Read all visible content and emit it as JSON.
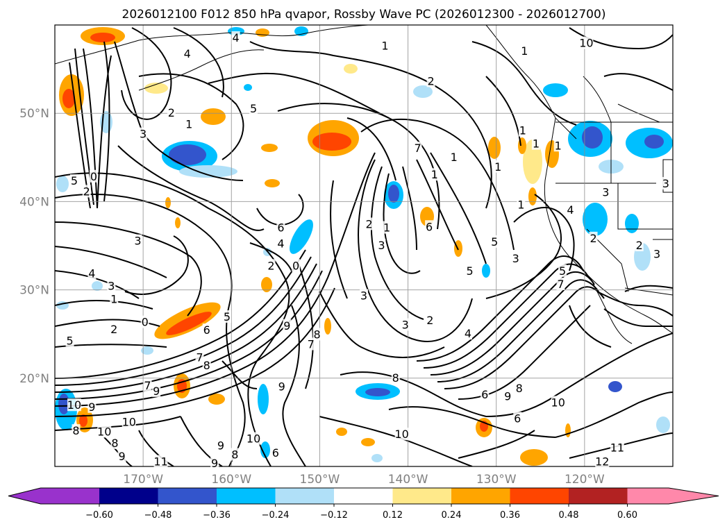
{
  "title": "2026012100 F012 850 hPa qvapor, Rossby Wave PC (2026012300 - 2026012700)",
  "map": {
    "lon_range": [
      -180,
      -110
    ],
    "lat_range": [
      10,
      60
    ],
    "lat_labels": [
      "50°N",
      "40°N",
      "30°N",
      "20°N"
    ],
    "lon_labels": [
      "170°W",
      "160°W",
      "150°W",
      "140°W",
      "130°W",
      "120°W"
    ],
    "gridlines": true
  },
  "colorbar": {
    "ticks": [
      "−0.60",
      "−0.48",
      "−0.36",
      "−0.24",
      "−0.12",
      "0.12",
      "0.24",
      "0.36",
      "0.48",
      "0.60"
    ],
    "colors": [
      "#9932cc",
      "#00008b",
      "#3355cc",
      "#00bfff",
      "#b0e0f8",
      "#ffffff",
      "#ffe98a",
      "#ffa500",
      "#ff4500",
      "#b22222",
      "#ff88aa"
    ],
    "extend": "both"
  },
  "contour_labels": [
    {
      "t": "4",
      "lon": -165.0,
      "lat": 56.7
    },
    {
      "t": "2",
      "lon": -166.8,
      "lat": 50.0
    },
    {
      "t": "1",
      "lon": -164.8,
      "lat": 48.7
    },
    {
      "t": "3",
      "lon": -170.0,
      "lat": 47.6
    },
    {
      "t": "5",
      "lon": -177.8,
      "lat": 42.3
    },
    {
      "t": "0",
      "lon": -175.6,
      "lat": 42.8
    },
    {
      "t": "2",
      "lon": -176.4,
      "lat": 41.1
    },
    {
      "t": "5",
      "lon": -157.5,
      "lat": 50.5
    },
    {
      "t": "4",
      "lon": -159.5,
      "lat": 58.5
    },
    {
      "t": "1",
      "lon": -142.6,
      "lat": 57.6
    },
    {
      "t": "2",
      "lon": -137.4,
      "lat": 53.6
    },
    {
      "t": "1",
      "lon": -126.8,
      "lat": 57.0
    },
    {
      "t": "10",
      "lon": -119.8,
      "lat": 57.9
    },
    {
      "t": "6",
      "lon": -154.4,
      "lat": 37.0
    },
    {
      "t": "4",
      "lon": -154.4,
      "lat": 35.2
    },
    {
      "t": "2",
      "lon": -155.5,
      "lat": 32.7
    },
    {
      "t": "0",
      "lon": -152.7,
      "lat": 32.7
    },
    {
      "t": "3",
      "lon": -170.6,
      "lat": 35.5
    },
    {
      "t": "4",
      "lon": -175.8,
      "lat": 31.8
    },
    {
      "t": "3",
      "lon": -173.6,
      "lat": 30.4
    },
    {
      "t": "1",
      "lon": -173.3,
      "lat": 28.9
    },
    {
      "t": "2",
      "lon": -173.3,
      "lat": 25.5
    },
    {
      "t": "0",
      "lon": -169.8,
      "lat": 26.3
    },
    {
      "t": "5",
      "lon": -178.3,
      "lat": 24.2
    },
    {
      "t": "6",
      "lon": -162.8,
      "lat": 25.4
    },
    {
      "t": "5",
      "lon": -160.5,
      "lat": 26.9
    },
    {
      "t": "9",
      "lon": -153.7,
      "lat": 25.9
    },
    {
      "t": "8",
      "lon": -150.3,
      "lat": 24.9
    },
    {
      "t": "7",
      "lon": -151.0,
      "lat": 23.8
    },
    {
      "t": "8",
      "lon": -162.8,
      "lat": 21.4
    },
    {
      "t": "7",
      "lon": -163.6,
      "lat": 22.3
    },
    {
      "t": "7",
      "lon": -169.5,
      "lat": 19.1
    },
    {
      "t": "9",
      "lon": -168.5,
      "lat": 18.5
    },
    {
      "t": "10",
      "lon": -177.8,
      "lat": 16.9
    },
    {
      "t": "9",
      "lon": -175.8,
      "lat": 16.7
    },
    {
      "t": "10",
      "lon": -174.4,
      "lat": 13.9
    },
    {
      "t": "8",
      "lon": -177.6,
      "lat": 14.0
    },
    {
      "t": "10",
      "lon": -171.6,
      "lat": 15.0
    },
    {
      "t": "8",
      "lon": -173.2,
      "lat": 12.6
    },
    {
      "t": "9",
      "lon": -172.4,
      "lat": 11.1
    },
    {
      "t": "11",
      "lon": -168.0,
      "lat": 10.5
    },
    {
      "t": "9",
      "lon": -161.2,
      "lat": 12.3
    },
    {
      "t": "9",
      "lon": -161.9,
      "lat": 10.3
    },
    {
      "t": "8",
      "lon": -159.6,
      "lat": 11.3
    },
    {
      "t": "10",
      "lon": -157.5,
      "lat": 13.1
    },
    {
      "t": "6",
      "lon": -155.0,
      "lat": 11.5
    },
    {
      "t": "9",
      "lon": -154.3,
      "lat": 19.0
    },
    {
      "t": "8",
      "lon": -141.4,
      "lat": 20.0
    },
    {
      "t": "10",
      "lon": -140.7,
      "lat": 13.6
    },
    {
      "t": "6",
      "lon": -131.3,
      "lat": 18.1
    },
    {
      "t": "9",
      "lon": -128.7,
      "lat": 17.9
    },
    {
      "t": "8",
      "lon": -127.4,
      "lat": 18.8
    },
    {
      "t": "6",
      "lon": -127.6,
      "lat": 15.4
    },
    {
      "t": "10",
      "lon": -123.0,
      "lat": 17.2
    },
    {
      "t": "11",
      "lon": -116.3,
      "lat": 12.1
    },
    {
      "t": "12",
      "lon": -118.0,
      "lat": 10.5
    },
    {
      "t": "2",
      "lon": -144.4,
      "lat": 37.4
    },
    {
      "t": "1",
      "lon": -142.4,
      "lat": 37.0
    },
    {
      "t": "3",
      "lon": -143.0,
      "lat": 35.0
    },
    {
      "t": "6",
      "lon": -137.6,
      "lat": 37.1
    },
    {
      "t": "7",
      "lon": -138.9,
      "lat": 46.0
    },
    {
      "t": "3",
      "lon": -145.0,
      "lat": 29.3
    },
    {
      "t": "3",
      "lon": -140.3,
      "lat": 26.0
    },
    {
      "t": "2",
      "lon": -137.5,
      "lat": 26.5
    },
    {
      "t": "4",
      "lon": -133.2,
      "lat": 25.0
    },
    {
      "t": "5",
      "lon": -133.0,
      "lat": 32.1
    },
    {
      "t": "5",
      "lon": -130.2,
      "lat": 35.4
    },
    {
      "t": "3",
      "lon": -127.8,
      "lat": 33.5
    },
    {
      "t": "1",
      "lon": -137.0,
      "lat": 43.0
    },
    {
      "t": "1",
      "lon": -134.8,
      "lat": 45.0
    },
    {
      "t": "1",
      "lon": -129.8,
      "lat": 43.9
    },
    {
      "t": "1",
      "lon": -127.2,
      "lat": 39.6
    },
    {
      "t": "1",
      "lon": -125.5,
      "lat": 46.5
    },
    {
      "t": "1",
      "lon": -123.0,
      "lat": 46.3
    },
    {
      "t": "1",
      "lon": -127.0,
      "lat": 48.0
    },
    {
      "t": "3",
      "lon": -117.6,
      "lat": 41.0
    },
    {
      "t": "4",
      "lon": -121.6,
      "lat": 39.0
    },
    {
      "t": "2",
      "lon": -119.0,
      "lat": 35.8
    },
    {
      "t": "2",
      "lon": -113.8,
      "lat": 35.0
    },
    {
      "t": "3",
      "lon": -111.8,
      "lat": 34.0
    },
    {
      "t": "3",
      "lon": -110.8,
      "lat": 42.0
    },
    {
      "t": "7",
      "lon": -122.7,
      "lat": 30.6
    },
    {
      "t": "5",
      "lon": -122.5,
      "lat": 32.1
    }
  ]
}
